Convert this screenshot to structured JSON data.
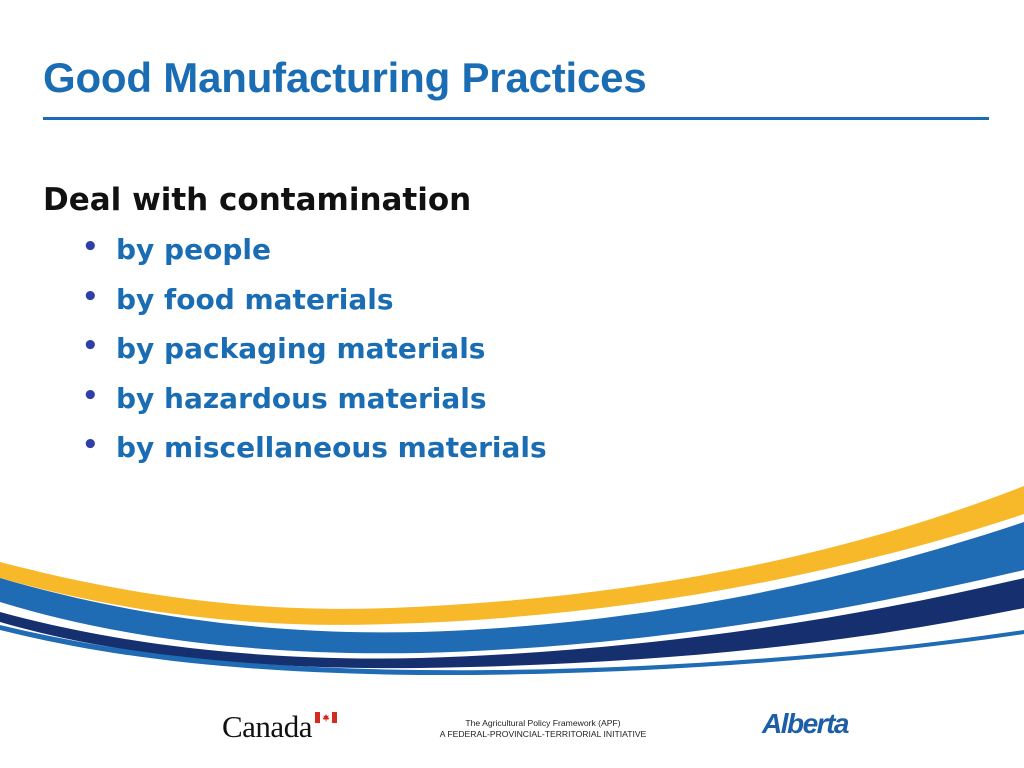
{
  "slide": {
    "title": "Good Manufacturing Practices",
    "heading": "Deal with contamination",
    "bullets": [
      "by people",
      "by food materials",
      "by packaging materials",
      "by hazardous materials",
      "by miscellaneous materials"
    ]
  },
  "footer": {
    "canada_wordmark": "Canada",
    "apf_line1": "The Agricultural Policy Framework (APF)",
    "apf_line2": "A FEDERAL-PROVINCIAL-TERRITORIAL INITIATIVE",
    "alberta_wordmark": "Alberta"
  },
  "colors": {
    "accent_blue": "#1a6db3",
    "bullet_dot": "#2f3ea8",
    "swoosh_yellow": "#f7b92a",
    "swoosh_blue": "#1f6bb4",
    "swoosh_navy": "#16306f",
    "flag_red": "#d52b1e"
  },
  "icons": {
    "bullet": "•",
    "canada_flag": "canada-flag-icon"
  }
}
